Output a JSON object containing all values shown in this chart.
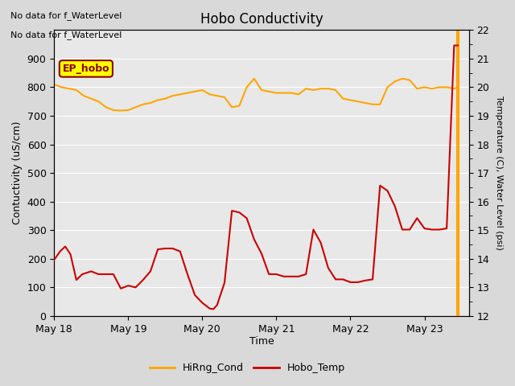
{
  "title": "Hobo Conductivity",
  "xlabel": "Time",
  "ylabel_left": "Contuctivity (uS/cm)",
  "ylabel_right": "Temperature (C), Water Level (psi)",
  "annotation_line1": "No data for f_WaterLevel",
  "annotation_line2": "No data for f_WaterLevel",
  "ep_hobo_label": "EP_hobo",
  "xlim_days": [
    0,
    5.6
  ],
  "ylim_left": [
    0,
    1000
  ],
  "ylim_right": [
    12.0,
    22.0
  ],
  "xtick_labels": [
    "May 18",
    "May 19",
    "May 20",
    "May 21",
    "May 22",
    "May 23"
  ],
  "xtick_positions": [
    0,
    1,
    2,
    3,
    4,
    5
  ],
  "yticks_left": [
    0,
    100,
    200,
    300,
    400,
    500,
    600,
    700,
    800,
    900
  ],
  "yticks_right": [
    12.0,
    13.0,
    14.0,
    15.0,
    16.0,
    17.0,
    18.0,
    19.0,
    20.0,
    21.0,
    22.0
  ],
  "background_color": "#d9d9d9",
  "plot_bg_color": "#e8e8e8",
  "grid_color": "#ffffff",
  "orange_color": "#FFA500",
  "red_color": "#CC0000",
  "vertical_line_color": "#FFA500",
  "legend_entries": [
    "HiRng_Cond",
    "Hobo_Temp"
  ],
  "legend_colors": [
    "#FFA500",
    "#CC0000"
  ],
  "cond_x": [
    0.0,
    0.1,
    0.2,
    0.3,
    0.4,
    0.5,
    0.6,
    0.7,
    0.8,
    0.9,
    1.0,
    1.1,
    1.2,
    1.3,
    1.4,
    1.5,
    1.6,
    1.7,
    1.8,
    1.9,
    2.0,
    2.1,
    2.2,
    2.3,
    2.4,
    2.5,
    2.6,
    2.7,
    2.8,
    2.9,
    3.0,
    3.1,
    3.2,
    3.3,
    3.4,
    3.5,
    3.6,
    3.7,
    3.8,
    3.9,
    4.0,
    4.1,
    4.2,
    4.3,
    4.4,
    4.5,
    4.6,
    4.7,
    4.8,
    4.9,
    5.0,
    5.1,
    5.2,
    5.3,
    5.4,
    5.45
  ],
  "cond_y": [
    810,
    800,
    795,
    790,
    770,
    760,
    750,
    730,
    720,
    718,
    720,
    730,
    740,
    745,
    755,
    760,
    770,
    775,
    780,
    785,
    790,
    775,
    770,
    765,
    730,
    735,
    800,
    830,
    790,
    785,
    780,
    780,
    780,
    775,
    795,
    790,
    795,
    795,
    790,
    760,
    755,
    750,
    745,
    740,
    740,
    800,
    820,
    830,
    825,
    795,
    800,
    795,
    800,
    800,
    795,
    800
  ],
  "temp_x": [
    0.0,
    0.08,
    0.15,
    0.22,
    0.3,
    0.38,
    0.5,
    0.6,
    0.7,
    0.8,
    0.9,
    1.0,
    1.1,
    1.2,
    1.3,
    1.4,
    1.5,
    1.6,
    1.7,
    1.8,
    1.9,
    2.0,
    2.1,
    2.15,
    2.2,
    2.3,
    2.4,
    2.5,
    2.6,
    2.7,
    2.8,
    2.9,
    3.0,
    3.1,
    3.2,
    3.3,
    3.4,
    3.5,
    3.6,
    3.7,
    3.8,
    3.9,
    4.0,
    4.1,
    4.2,
    4.3,
    4.4,
    4.5,
    4.6,
    4.7,
    4.8,
    4.9,
    5.0,
    5.1,
    5.2,
    5.3,
    5.4,
    5.45
  ],
  "temp_y": [
    13.96,
    14.26,
    14.43,
    14.16,
    13.26,
    13.46,
    13.56,
    13.46,
    13.46,
    13.46,
    12.96,
    13.06,
    13.0,
    13.26,
    13.56,
    14.33,
    14.36,
    14.36,
    14.26,
    13.46,
    12.73,
    12.46,
    12.26,
    12.24,
    12.38,
    13.16,
    15.68,
    15.62,
    15.42,
    14.68,
    14.18,
    13.46,
    13.46,
    13.38,
    13.38,
    13.38,
    13.46,
    15.02,
    14.56,
    13.68,
    13.28,
    13.28,
    13.18,
    13.18,
    13.24,
    13.28,
    16.56,
    16.38,
    15.84,
    15.02,
    15.02,
    15.42,
    15.06,
    15.02,
    15.02,
    15.06,
    21.46,
    21.46
  ],
  "vline_x": 5.45
}
